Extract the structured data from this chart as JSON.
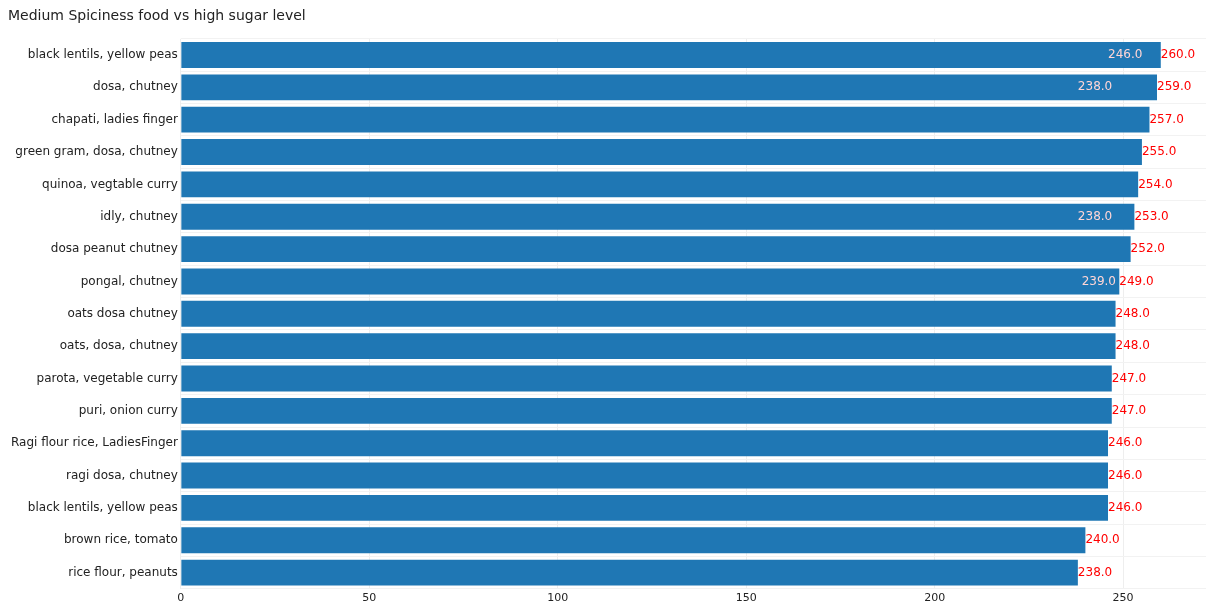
{
  "chart_data": {
    "type": "bar",
    "orientation": "horizontal",
    "title": "Medium Spiciness food vs high sugar level",
    "categories": [
      "black lentils, yellow peas",
      "dosa, chutney",
      "chapati, ladies finger",
      "green gram, dosa, chutney",
      "quinoa, vegtable curry",
      "idly, chutney",
      "dosa peanut chutney",
      "pongal, chutney",
      "oats dosa chutney",
      "oats, dosa, chutney",
      "parota, vegetable curry",
      "puri, onion curry",
      "Ragi flour rice, LadiesFinger",
      "ragi dosa, chutney",
      "black lentils, yellow peas",
      "brown rice, tomato",
      "rice flour, peanuts"
    ],
    "values": [
      260,
      259,
      257,
      255,
      254,
      253,
      252,
      249,
      248,
      248,
      247,
      247,
      246,
      246,
      246,
      240,
      238
    ],
    "value_labels": [
      "260.0",
      "259.0",
      "257.0",
      "255.0",
      "254.0",
      "253.0",
      "252.0",
      "249.0",
      "248.0",
      "248.0",
      "247.0",
      "247.0",
      "246.0",
      "246.0",
      "246.0",
      "240.0",
      "238.0"
    ],
    "color": "#1f77b4",
    "xlim": [
      0,
      272
    ],
    "xticks": [
      0,
      50,
      100,
      150,
      200,
      250
    ],
    "grid": true,
    "annotations": [
      {
        "text": "246.0",
        "x": 246,
        "y": "black lentils, yellow peas"
      },
      {
        "text": "238.0",
        "x": 238,
        "y": "dosa, chutney"
      },
      {
        "text": "238.0",
        "x": 238,
        "y": "idly, chutney"
      },
      {
        "text": "239.0",
        "x": 239,
        "y": "pongal, chutney"
      }
    ]
  }
}
